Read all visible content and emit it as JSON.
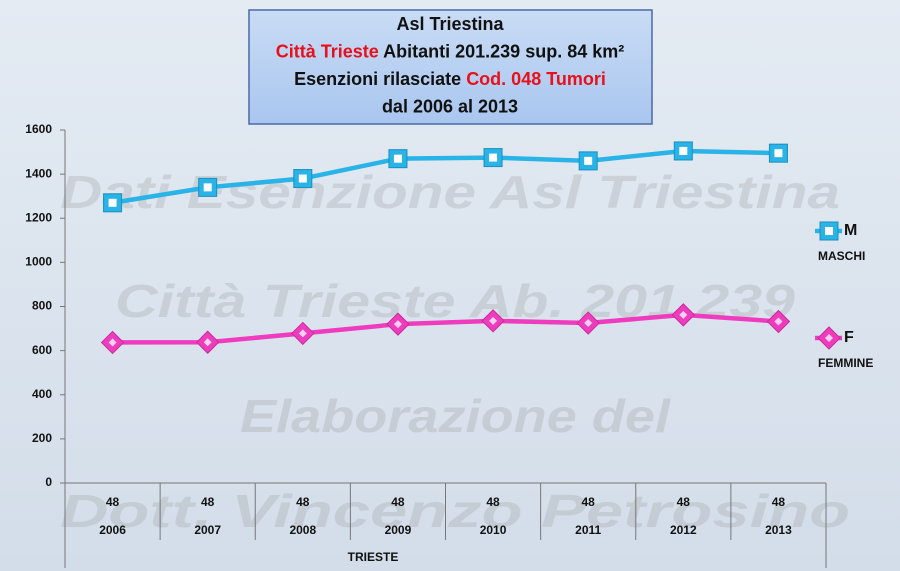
{
  "chart_data": {
    "type": "line",
    "title_lines": [
      [
        {
          "text": "Asl Triestina",
          "color": "#111111"
        }
      ],
      [
        {
          "text": "Città Trieste",
          "color": "#e8101a"
        },
        {
          "text": " Abitanti 201.239  sup. 84 km²",
          "color": "#111111"
        }
      ],
      [
        {
          "text": "Esenzioni rilasciate ",
          "color": "#111111"
        },
        {
          "text": "Cod. 048 Tumori",
          "color": "#e8101a"
        }
      ],
      [
        {
          "text": "dal 2006 al 2013",
          "color": "#111111"
        }
      ]
    ],
    "categories": [
      "2006",
      "2007",
      "2008",
      "2009",
      "2010",
      "2011",
      "2012",
      "2013"
    ],
    "category_codes": [
      "48",
      "48",
      "48",
      "48",
      "48",
      "48",
      "48",
      "48"
    ],
    "category_group": "TRIESTE",
    "series": [
      {
        "name": "M",
        "description": "MASCHI",
        "color": "#29b3e6",
        "marker": "square",
        "values": [
          1270,
          1340,
          1380,
          1470,
          1475,
          1460,
          1505,
          1495
        ]
      },
      {
        "name": "F",
        "description": "FEMMINE",
        "color": "#ef3cbf",
        "marker": "diamond",
        "values": [
          637,
          638,
          678,
          720,
          735,
          725,
          762,
          732
        ]
      }
    ],
    "ylim": [
      0,
      1600
    ],
    "yticks": [
      0,
      200,
      400,
      600,
      800,
      1000,
      1200,
      1400,
      1600
    ],
    "grid": false,
    "legend": "right",
    "watermarks": [
      "Dati Esenzione Asl Triestina",
      "Città Trieste  Ab. 201.239",
      "Elaborazione del",
      "Dott. Vincenzo Petrosino"
    ]
  }
}
